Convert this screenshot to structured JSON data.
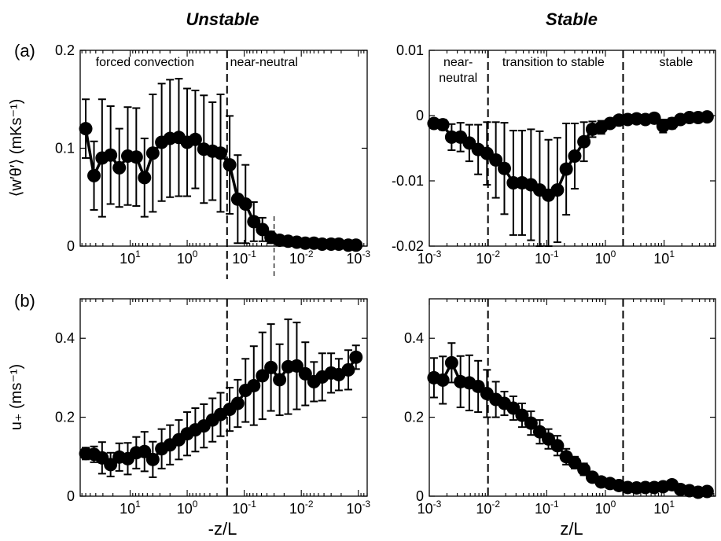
{
  "headings": {
    "unstable": "Unstable",
    "stable": "Stable"
  },
  "panel_labels": {
    "a": "(a)",
    "b": "(b)"
  },
  "x_labels": {
    "unstable": "-z/L",
    "stable": "z/L"
  },
  "y_labels": {
    "heat_flux": "⟨w′θ′⟩ (mKs⁻¹)",
    "ustar": "u₊ (ms⁻¹)"
  },
  "chart_data": [
    {
      "id": "a-unstable",
      "type": "line",
      "xscale": "log",
      "xreversed": true,
      "xlim": [
        0.0007,
        75
      ],
      "ylim": [
        0,
        0.2
      ],
      "yticks": [
        0,
        0.1,
        0.2
      ],
      "ytick_labels": [
        "0",
        "0.1",
        "0.2"
      ],
      "xticks": [
        10,
        1,
        0.1,
        0.01,
        0.001
      ],
      "xtick_labels": [
        {
          "b": "10",
          "e": "1"
        },
        {
          "b": "10",
          "e": "0"
        },
        {
          "b": "10",
          "e": "-1"
        },
        {
          "b": "10",
          "e": "-2"
        },
        {
          "b": "10",
          "e": "-3"
        }
      ],
      "regions": [
        {
          "text": "forced convection",
          "at": 5.5
        },
        {
          "text": "near-neutral",
          "at": 0.045
        }
      ],
      "vlines": [
        {
          "x": 0.2,
          "style": "dashed-full"
        },
        {
          "x": 0.03,
          "style": "dashed-short"
        }
      ],
      "x": [
        60,
        43,
        31,
        22,
        15.5,
        11,
        7.8,
        5.6,
        4,
        2.8,
        2,
        1.4,
        1,
        0.72,
        0.51,
        0.36,
        0.26,
        0.18,
        0.13,
        0.095,
        0.068,
        0.048,
        0.034,
        0.024,
        0.017,
        0.012,
        0.0085,
        0.006,
        0.0043,
        0.003,
        0.0022,
        0.0015,
        0.0011
      ],
      "y": [
        0.12,
        0.072,
        0.09,
        0.093,
        0.08,
        0.092,
        0.091,
        0.07,
        0.095,
        0.106,
        0.11,
        0.111,
        0.106,
        0.109,
        0.099,
        0.097,
        0.095,
        0.083,
        0.048,
        0.043,
        0.025,
        0.017,
        0.009,
        0.006,
        0.005,
        0.004,
        0.003,
        0.003,
        0.002,
        0.002,
        0.002,
        0.001,
        0.001
      ],
      "err": [
        0.03,
        0.035,
        0.06,
        0.05,
        0.04,
        0.05,
        0.05,
        0.04,
        0.06,
        0.06,
        0.06,
        0.06,
        0.055,
        0.05,
        0.055,
        0.05,
        0.06,
        0.05,
        0.045,
        0.04,
        0.02,
        0.012,
        0.006,
        0.004,
        0.003,
        0.002,
        0.002,
        0.002,
        0.001,
        0.001,
        0.001,
        0.001,
        0.001
      ]
    },
    {
      "id": "a-stable",
      "type": "line",
      "xscale": "log",
      "xreversed": false,
      "xlim": [
        0.001,
        75
      ],
      "ylim": [
        -0.02,
        0.01
      ],
      "yticks": [
        -0.02,
        -0.01,
        0,
        0.01
      ],
      "ytick_labels": [
        "-0.02",
        "-0.01",
        "0",
        "0.01"
      ],
      "xticks": [
        0.001,
        0.01,
        0.1,
        1,
        10
      ],
      "xtick_labels": [
        {
          "b": "10",
          "e": "-3"
        },
        {
          "b": "10",
          "e": "-2"
        },
        {
          "b": "10",
          "e": "-1"
        },
        {
          "b": "10",
          "e": "0"
        },
        {
          "b": "10",
          "e": "1"
        }
      ],
      "regions": [
        {
          "text": "near-",
          "at": 0.0031,
          "line": 0
        },
        {
          "text": "neutral",
          "at": 0.0031,
          "line": 1
        },
        {
          "text": "transition to stable",
          "at": 0.13
        },
        {
          "text": "stable",
          "at": 16
        }
      ],
      "vlines": [
        {
          "x": 0.01,
          "style": "dashed-full"
        },
        {
          "x": 2,
          "style": "dashed-full"
        }
      ],
      "x": [
        0.0012,
        0.0017,
        0.0024,
        0.0034,
        0.0048,
        0.0068,
        0.0096,
        0.0136,
        0.019,
        0.027,
        0.038,
        0.054,
        0.076,
        0.107,
        0.152,
        0.215,
        0.3,
        0.43,
        0.6,
        0.85,
        1.2,
        1.7,
        2.4,
        3.4,
        4.8,
        6.8,
        9.6,
        13.6,
        19,
        27,
        38,
        54
      ],
      "y": [
        -0.0012,
        -0.0014,
        -0.0033,
        -0.0033,
        -0.0042,
        -0.0052,
        -0.0058,
        -0.0068,
        -0.0081,
        -0.0103,
        -0.0103,
        -0.0106,
        -0.0114,
        -0.0122,
        -0.0114,
        -0.0082,
        -0.0062,
        -0.004,
        -0.0021,
        -0.0018,
        -0.0012,
        -0.0007,
        -0.0006,
        -0.0005,
        -0.0006,
        -0.0004,
        -0.0016,
        -0.0012,
        -0.0006,
        -0.0003,
        -0.0003,
        -0.0002
      ],
      "err": [
        0.0005,
        0.0008,
        0.002,
        0.0022,
        0.0028,
        0.0038,
        0.0048,
        0.0058,
        0.007,
        0.008,
        0.008,
        0.0085,
        0.009,
        0.0085,
        0.008,
        0.007,
        0.005,
        0.003,
        0.0012,
        0.001,
        0.0006,
        0.0006,
        0.0005,
        0.0005,
        0.0004,
        0.0004,
        0.001,
        0.0008,
        0.0005,
        0.0003,
        0.0003,
        0.0002
      ]
    },
    {
      "id": "b-unstable",
      "type": "line",
      "xscale": "log",
      "xreversed": true,
      "xlim": [
        0.0007,
        75
      ],
      "ylim": [
        0,
        0.5
      ],
      "yticks": [
        0,
        0.2,
        0.4
      ],
      "ytick_labels": [
        "0",
        "0.2",
        "0.4"
      ],
      "xticks": [
        10,
        1,
        0.1,
        0.01,
        0.001
      ],
      "xtick_labels": [
        {
          "b": "10",
          "e": "1"
        },
        {
          "b": "10",
          "e": "0"
        },
        {
          "b": "10",
          "e": "-1"
        },
        {
          "b": "10",
          "e": "-2"
        },
        {
          "b": "10",
          "e": "-3"
        }
      ],
      "regions": [],
      "vlines": [
        {
          "x": 0.2,
          "style": "dashed-full"
        }
      ],
      "x": [
        60,
        43,
        31,
        22,
        15.5,
        11,
        7.8,
        5.6,
        4,
        2.8,
        2,
        1.4,
        1,
        0.72,
        0.51,
        0.36,
        0.26,
        0.18,
        0.13,
        0.095,
        0.068,
        0.048,
        0.034,
        0.024,
        0.017,
        0.012,
        0.0085,
        0.006,
        0.0043,
        0.003,
        0.0022,
        0.0015,
        0.0011
      ],
      "y": [
        0.108,
        0.106,
        0.097,
        0.08,
        0.099,
        0.095,
        0.11,
        0.113,
        0.093,
        0.12,
        0.13,
        0.143,
        0.158,
        0.168,
        0.178,
        0.193,
        0.207,
        0.22,
        0.235,
        0.268,
        0.28,
        0.305,
        0.326,
        0.295,
        0.328,
        0.33,
        0.31,
        0.29,
        0.302,
        0.312,
        0.308,
        0.32,
        0.352
      ],
      "err": [
        0.015,
        0.02,
        0.04,
        0.03,
        0.035,
        0.04,
        0.04,
        0.05,
        0.045,
        0.05,
        0.05,
        0.05,
        0.055,
        0.055,
        0.055,
        0.055,
        0.055,
        0.055,
        0.06,
        0.08,
        0.1,
        0.11,
        0.11,
        0.09,
        0.12,
        0.11,
        0.08,
        0.05,
        0.06,
        0.05,
        0.04,
        0.05,
        0.03
      ]
    },
    {
      "id": "b-stable",
      "type": "line",
      "xscale": "log",
      "xreversed": false,
      "xlim": [
        0.001,
        75
      ],
      "ylim": [
        0,
        0.5
      ],
      "yticks": [
        0,
        0.2,
        0.4
      ],
      "ytick_labels": [
        "0",
        "0.2",
        "0.4"
      ],
      "xticks": [
        0.001,
        0.01,
        0.1,
        1,
        10
      ],
      "xtick_labels": [
        {
          "b": "10",
          "e": "-3"
        },
        {
          "b": "10",
          "e": "-2"
        },
        {
          "b": "10",
          "e": "-1"
        },
        {
          "b": "10",
          "e": "0"
        },
        {
          "b": "10",
          "e": "1"
        }
      ],
      "regions": [],
      "vlines": [
        {
          "x": 0.01,
          "style": "dashed-full"
        },
        {
          "x": 2,
          "style": "dashed-full"
        }
      ],
      "x": [
        0.0012,
        0.0017,
        0.0024,
        0.0034,
        0.0048,
        0.0068,
        0.0096,
        0.0136,
        0.019,
        0.027,
        0.038,
        0.054,
        0.076,
        0.107,
        0.152,
        0.215,
        0.3,
        0.43,
        0.6,
        0.85,
        1.2,
        1.7,
        2.4,
        3.4,
        4.8,
        6.8,
        9.6,
        13.6,
        19,
        27,
        38,
        54
      ],
      "y": [
        0.3,
        0.294,
        0.338,
        0.29,
        0.287,
        0.278,
        0.26,
        0.245,
        0.235,
        0.223,
        0.205,
        0.185,
        0.163,
        0.145,
        0.128,
        0.1,
        0.085,
        0.068,
        0.048,
        0.036,
        0.032,
        0.027,
        0.022,
        0.021,
        0.022,
        0.022,
        0.024,
        0.029,
        0.017,
        0.014,
        0.01,
        0.012
      ],
      "err": [
        0.05,
        0.06,
        0.05,
        0.065,
        0.07,
        0.065,
        0.06,
        0.045,
        0.03,
        0.03,
        0.03,
        0.03,
        0.03,
        0.025,
        0.025,
        0.02,
        0.015,
        0.015,
        0.01,
        0.008,
        0.006,
        0.006,
        0.005,
        0.005,
        0.005,
        0.006,
        0.006,
        0.01,
        0.005,
        0.004,
        0.004,
        0.004
      ]
    }
  ]
}
